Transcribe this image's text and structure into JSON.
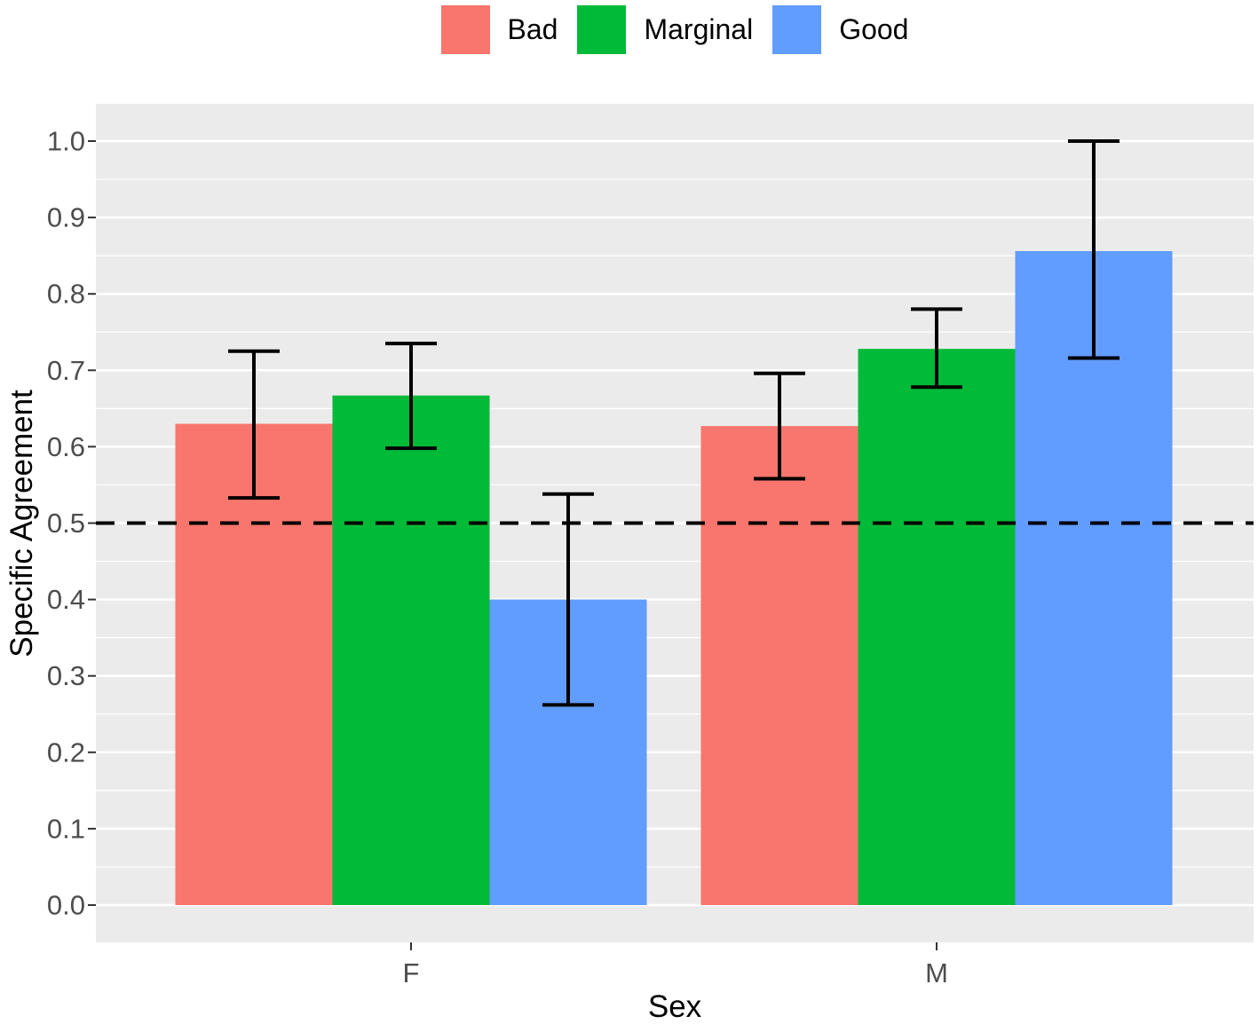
{
  "chart_data": {
    "type": "bar",
    "subtype": "grouped-with-error-bars",
    "title": "",
    "xlabel": "Sex",
    "ylabel": "Specific Agreement",
    "categories": [
      "F",
      "M"
    ],
    "series": [
      {
        "name": "Bad",
        "color": "#F8766D",
        "values": [
          0.63,
          0.627
        ],
        "error_low": [
          0.533,
          0.558
        ],
        "error_high": [
          0.725,
          0.696
        ]
      },
      {
        "name": "Marginal",
        "color": "#00BA38",
        "values": [
          0.667,
          0.728
        ],
        "error_low": [
          0.598,
          0.678
        ],
        "error_high": [
          0.735,
          0.78
        ]
      },
      {
        "name": "Good",
        "color": "#619CFF",
        "values": [
          0.4,
          0.856
        ],
        "error_low": [
          0.262,
          0.716
        ],
        "error_high": [
          0.538,
          1.0
        ]
      }
    ],
    "reference_line": {
      "value": 0.5,
      "style": "dashed",
      "color": "#000000"
    },
    "ylim": [
      0.0,
      1.0
    ],
    "ytick_values": [
      0.0,
      0.1,
      0.2,
      0.3,
      0.4,
      0.5,
      0.6,
      0.7,
      0.8,
      0.9,
      1.0
    ],
    "ytick_labels": [
      "0.0",
      "0.1",
      "0.2",
      "0.3",
      "0.4",
      "0.5",
      "0.6",
      "0.7",
      "0.8",
      "0.9",
      "1.0"
    ],
    "xtick_labels": [
      "F",
      "M"
    ],
    "legend_position": "top-center",
    "grid": {
      "major_every": 0.1,
      "minor_every": 0.05,
      "major_color": "#FFFFFF",
      "minor_color": "#FFFFFF"
    },
    "colors": {
      "panel_background": "#EBEBEB",
      "tick_mark": "#333333",
      "tick_label": "#4D4D4D",
      "axis_title": "#000000",
      "error_bar": "#000000"
    }
  }
}
